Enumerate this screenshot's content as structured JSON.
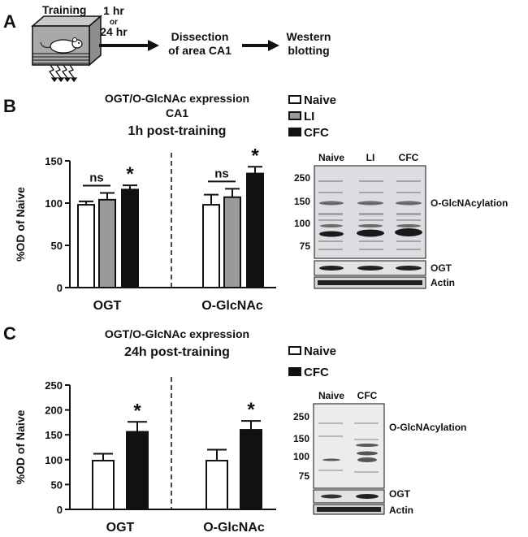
{
  "panel_a": {
    "letter": "A",
    "training_label": "Training",
    "time_line1": "1 hr",
    "time_or": "or",
    "time_line2": "24 hr",
    "step2_line1": "Dissection",
    "step2_line2": "of area CA1",
    "step3_line1": "Western",
    "step3_line2": "blotting"
  },
  "panel_b": {
    "letter": "B",
    "title_line1": "OGT/O-GlcNAc expression",
    "title_line2": "CA1",
    "title_line3": "1h post-training",
    "legend": [
      "Naive",
      "LI",
      "CFC"
    ],
    "blot": {
      "lanes": [
        "Naive",
        "LI",
        "CFC"
      ],
      "markers": [
        "250",
        "150",
        "100",
        "75"
      ],
      "label_main": "O-GlcNAcylation",
      "label_ogt": "OGT",
      "label_actin": "Actin"
    }
  },
  "panel_c": {
    "letter": "C",
    "title_line1": "OGT/O-GlcNAc expression",
    "title_line2": "24h post-training",
    "legend": [
      "Naive",
      "CFC"
    ],
    "blot": {
      "lanes": [
        "Naive",
        "CFC"
      ],
      "markers": [
        "250",
        "150",
        "100",
        "75"
      ],
      "label_main": "O-GlcNAcylation",
      "label_ogt": "OGT",
      "label_actin": "Actin"
    }
  },
  "colors": {
    "naive": "#ffffff",
    "li": "#9a9a9a",
    "cfc": "#111111",
    "stroke": "#111111"
  },
  "chart_data": [
    {
      "type": "bar",
      "panel": "B",
      "ylabel": "%OD of Naive",
      "ylim": [
        0,
        150
      ],
      "yticks": [
        "0",
        "50",
        "100",
        "150"
      ],
      "categories": [
        "OGT",
        "O-GlcNAc"
      ],
      "series": [
        {
          "name": "Naive",
          "values": [
            98,
            98
          ],
          "errors": [
            4,
            12
          ]
        },
        {
          "name": "LI",
          "values": [
            104,
            107
          ],
          "errors": [
            8,
            10
          ]
        },
        {
          "name": "CFC",
          "values": [
            116,
            135
          ],
          "errors": [
            5,
            8
          ]
        }
      ],
      "annotations": [
        {
          "group": 0,
          "comparison": "ns",
          "text": "ns"
        },
        {
          "group": 0,
          "series": 2,
          "text": "*"
        },
        {
          "group": 1,
          "comparison": "ns",
          "text": "ns"
        },
        {
          "group": 1,
          "series": 2,
          "text": "*"
        }
      ]
    },
    {
      "type": "bar",
      "panel": "C",
      "ylabel": "%OD of Naive",
      "ylim": [
        0,
        250
      ],
      "yticks": [
        "0",
        "50",
        "100",
        "150",
        "200",
        "250"
      ],
      "categories": [
        "OGT",
        "O-GlcNAc"
      ],
      "series": [
        {
          "name": "Naive",
          "values": [
            98,
            98
          ],
          "errors": [
            14,
            22
          ]
        },
        {
          "name": "CFC",
          "values": [
            156,
            160
          ],
          "errors": [
            20,
            18
          ]
        }
      ],
      "annotations": [
        {
          "group": 0,
          "series": 1,
          "text": "*"
        },
        {
          "group": 1,
          "series": 1,
          "text": "*"
        }
      ]
    }
  ]
}
